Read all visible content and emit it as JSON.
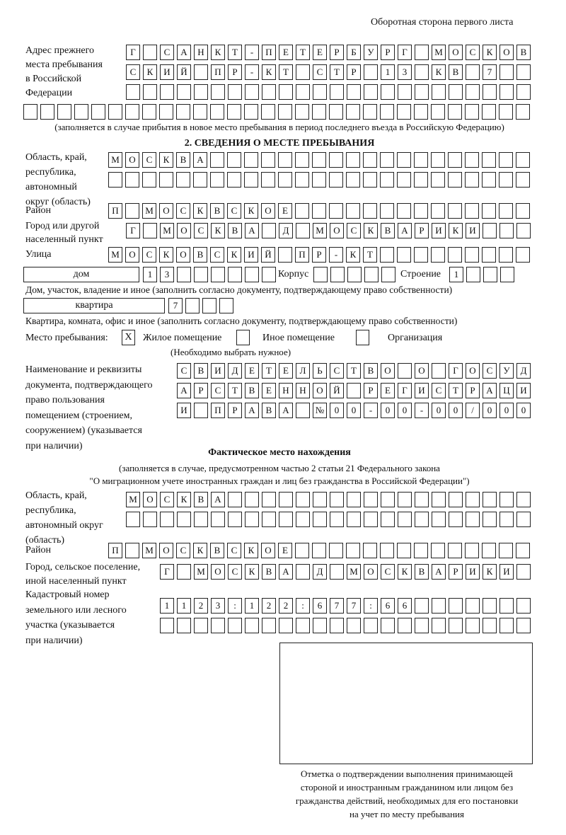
{
  "header": "Оборотная сторона первого листа",
  "prev_address": {
    "label": [
      "Адрес прежнего",
      "места пребывания",
      "в Российской",
      "Федерации"
    ],
    "rows": [
      [
        "Г",
        "",
        "С",
        "А",
        "Н",
        "К",
        "Т",
        "-",
        "П",
        "Е",
        "Т",
        "Е",
        "Р",
        "Б",
        "У",
        "Р",
        "Г",
        "",
        "М",
        "О",
        "С",
        "К",
        "О",
        "В"
      ],
      [
        "С",
        "К",
        "И",
        "Й",
        "",
        "П",
        "Р",
        "-",
        "К",
        "Т",
        "",
        "С",
        "Т",
        "Р",
        "",
        "1",
        "3",
        "",
        "К",
        "В",
        "",
        "7",
        "",
        ""
      ],
      [
        "",
        "",
        "",
        "",
        "",
        "",
        "",
        "",
        "",
        "",
        "",
        "",
        "",
        "",
        "",
        "",
        "",
        "",
        "",
        "",
        "",
        "",
        "",
        ""
      ],
      [
        "",
        "",
        "",
        "",
        "",
        "",
        "",
        "",
        "",
        "",
        "",
        "",
        "",
        "",
        "",
        "",
        "",
        "",
        "",
        "",
        "",
        "",
        "",
        "",
        "",
        "",
        "",
        "",
        "",
        ""
      ]
    ],
    "note": "(заполняется в случае прибытия в новое место пребывания в период последнего въезда в Российскую Федерацию)"
  },
  "section2": {
    "title": "2. СВЕДЕНИЯ О МЕСТЕ ПРЕБЫВАНИЯ",
    "region_label": [
      "Область, край,",
      "республика,",
      "автономный",
      "округ (область)"
    ],
    "region_rows": [
      [
        "М",
        "О",
        "С",
        "К",
        "В",
        "А",
        "",
        "",
        "",
        "",
        "",
        "",
        "",
        "",
        "",
        "",
        "",
        "",
        "",
        "",
        "",
        "",
        "",
        "",
        ""
      ],
      [
        "",
        "",
        "",
        "",
        "",
        "",
        "",
        "",
        "",
        "",
        "",
        "",
        "",
        "",
        "",
        "",
        "",
        "",
        "",
        "",
        "",
        "",
        "",
        "",
        ""
      ]
    ],
    "district_label": "Район",
    "district": [
      "П",
      "",
      "М",
      "О",
      "С",
      "К",
      "В",
      "С",
      "К",
      "О",
      "Е",
      "",
      "",
      "",
      "",
      "",
      "",
      "",
      "",
      "",
      "",
      "",
      "",
      "",
      ""
    ],
    "city_label": [
      "Город или другой",
      "населенный пункт"
    ],
    "city": [
      "Г",
      "",
      "М",
      "О",
      "С",
      "К",
      "В",
      "А",
      "",
      "Д",
      "",
      "М",
      "О",
      "С",
      "К",
      "В",
      "А",
      "Р",
      "И",
      "К",
      "И",
      "",
      "",
      ""
    ],
    "street_label": "Улица",
    "street": [
      "М",
      "О",
      "С",
      "К",
      "О",
      "В",
      "С",
      "К",
      "И",
      "Й",
      "",
      "П",
      "Р",
      "-",
      "К",
      "Т",
      "",
      "",
      "",
      "",
      "",
      "",
      "",
      "",
      ""
    ],
    "house_type": "дом",
    "house": [
      "1",
      "3",
      "",
      "",
      "",
      "",
      "",
      ""
    ],
    "korpus_label": "Корпус",
    "korpus": [
      "",
      "",
      "",
      "",
      ""
    ],
    "building_label": "Строение",
    "building": [
      "1",
      "",
      "",
      ""
    ],
    "house_note": "Дом, участок, владение и иное (заполнить согласно документу, подтверждающему право собственности)",
    "apt_type": "квартира",
    "apt": [
      "7",
      "",
      "",
      ""
    ],
    "apt_note": "Квартира, комната, офис и иное (заполнить согласно документу, подтверждающему право собственности)",
    "stay_label": "Место пребывания:",
    "stay_options": [
      {
        "label": "Жилое помещение",
        "mark": "X"
      },
      {
        "label": "Иное помещение",
        "mark": ""
      },
      {
        "label": "Организация",
        "mark": ""
      }
    ],
    "stay_note": "(Необходимо выбрать нужное)",
    "doc_label": [
      "Наименование и реквизиты",
      "документа, подтверждающего",
      "право пользования",
      "помещением (строением,",
      "сооружением) (указывается",
      "при наличии)"
    ],
    "doc_rows": [
      [
        "С",
        "В",
        "И",
        "Д",
        "Е",
        "Т",
        "Е",
        "Л",
        "Ь",
        "С",
        "Т",
        "В",
        "О",
        "",
        "О",
        "",
        "Г",
        "О",
        "С",
        "У",
        "Д"
      ],
      [
        "А",
        "Р",
        "С",
        "Т",
        "В",
        "Е",
        "Н",
        "Н",
        "О",
        "Й",
        "",
        "Р",
        "Е",
        "Г",
        "И",
        "С",
        "Т",
        "Р",
        "А",
        "Ц",
        "И"
      ],
      [
        "И",
        "",
        "П",
        "Р",
        "А",
        "В",
        "А",
        "",
        "№",
        "0",
        "0",
        "-",
        "0",
        "0",
        "-",
        "0",
        "0",
        "/",
        "0",
        "0",
        "0"
      ]
    ]
  },
  "actual": {
    "title": "Фактическое место нахождения",
    "note": [
      "(заполняется в случае, предусмотренном частью 2 статьи 21 Федерального закона",
      "\"О миграционном учете иностранных граждан и лиц без гражданства в Российской Федерации\")"
    ],
    "region_label": [
      "Область, край,",
      "республика,",
      "автономный округ",
      "(область)"
    ],
    "region_rows": [
      [
        "М",
        "О",
        "С",
        "К",
        "В",
        "А",
        "",
        "",
        "",
        "",
        "",
        "",
        "",
        "",
        "",
        "",
        "",
        "",
        "",
        "",
        "",
        "",
        "",
        ""
      ],
      [
        "",
        "",
        "",
        "",
        "",
        "",
        "",
        "",
        "",
        "",
        "",
        "",
        "",
        "",
        "",
        "",
        "",
        "",
        "",
        "",
        "",
        "",
        "",
        ""
      ]
    ],
    "district_label": "Район",
    "district": [
      "П",
      "",
      "М",
      "О",
      "С",
      "К",
      "В",
      "С",
      "К",
      "О",
      "Е",
      "",
      "",
      "",
      "",
      "",
      "",
      "",
      "",
      "",
      "",
      "",
      "",
      "",
      ""
    ],
    "city_label": [
      "Город, сельское поселение,",
      "иной населенный пункт"
    ],
    "city": [
      "Г",
      "",
      "М",
      "О",
      "С",
      "К",
      "В",
      "А",
      "",
      "Д",
      "",
      "М",
      "О",
      "С",
      "К",
      "В",
      "А",
      "Р",
      "И",
      "К",
      "И",
      ""
    ],
    "cadastre_label": [
      "Кадастровый номер",
      "земельного или лесного",
      "участка (указывается",
      "при наличии)"
    ],
    "cadastre_rows": [
      [
        "1",
        "1",
        "2",
        "3",
        ":",
        "1",
        "2",
        "2",
        ":",
        "6",
        "7",
        "7",
        ":",
        "6",
        "6",
        "",
        "",
        "",
        "",
        "",
        "",
        ""
      ],
      [
        "",
        "",
        "",
        "",
        "",
        "",
        "",
        "",
        "",
        "",
        "",
        "",
        "",
        "",
        "",
        "",
        "",
        "",
        "",
        "",
        "",
        ""
      ]
    ],
    "stamp_caption": [
      "Отметка о подтверждении выполнения принимающей",
      "стороной и иностранным гражданином или лицом без",
      "гражданства действий, необходимых для его постановки",
      "на учет по месту пребывания"
    ]
  }
}
